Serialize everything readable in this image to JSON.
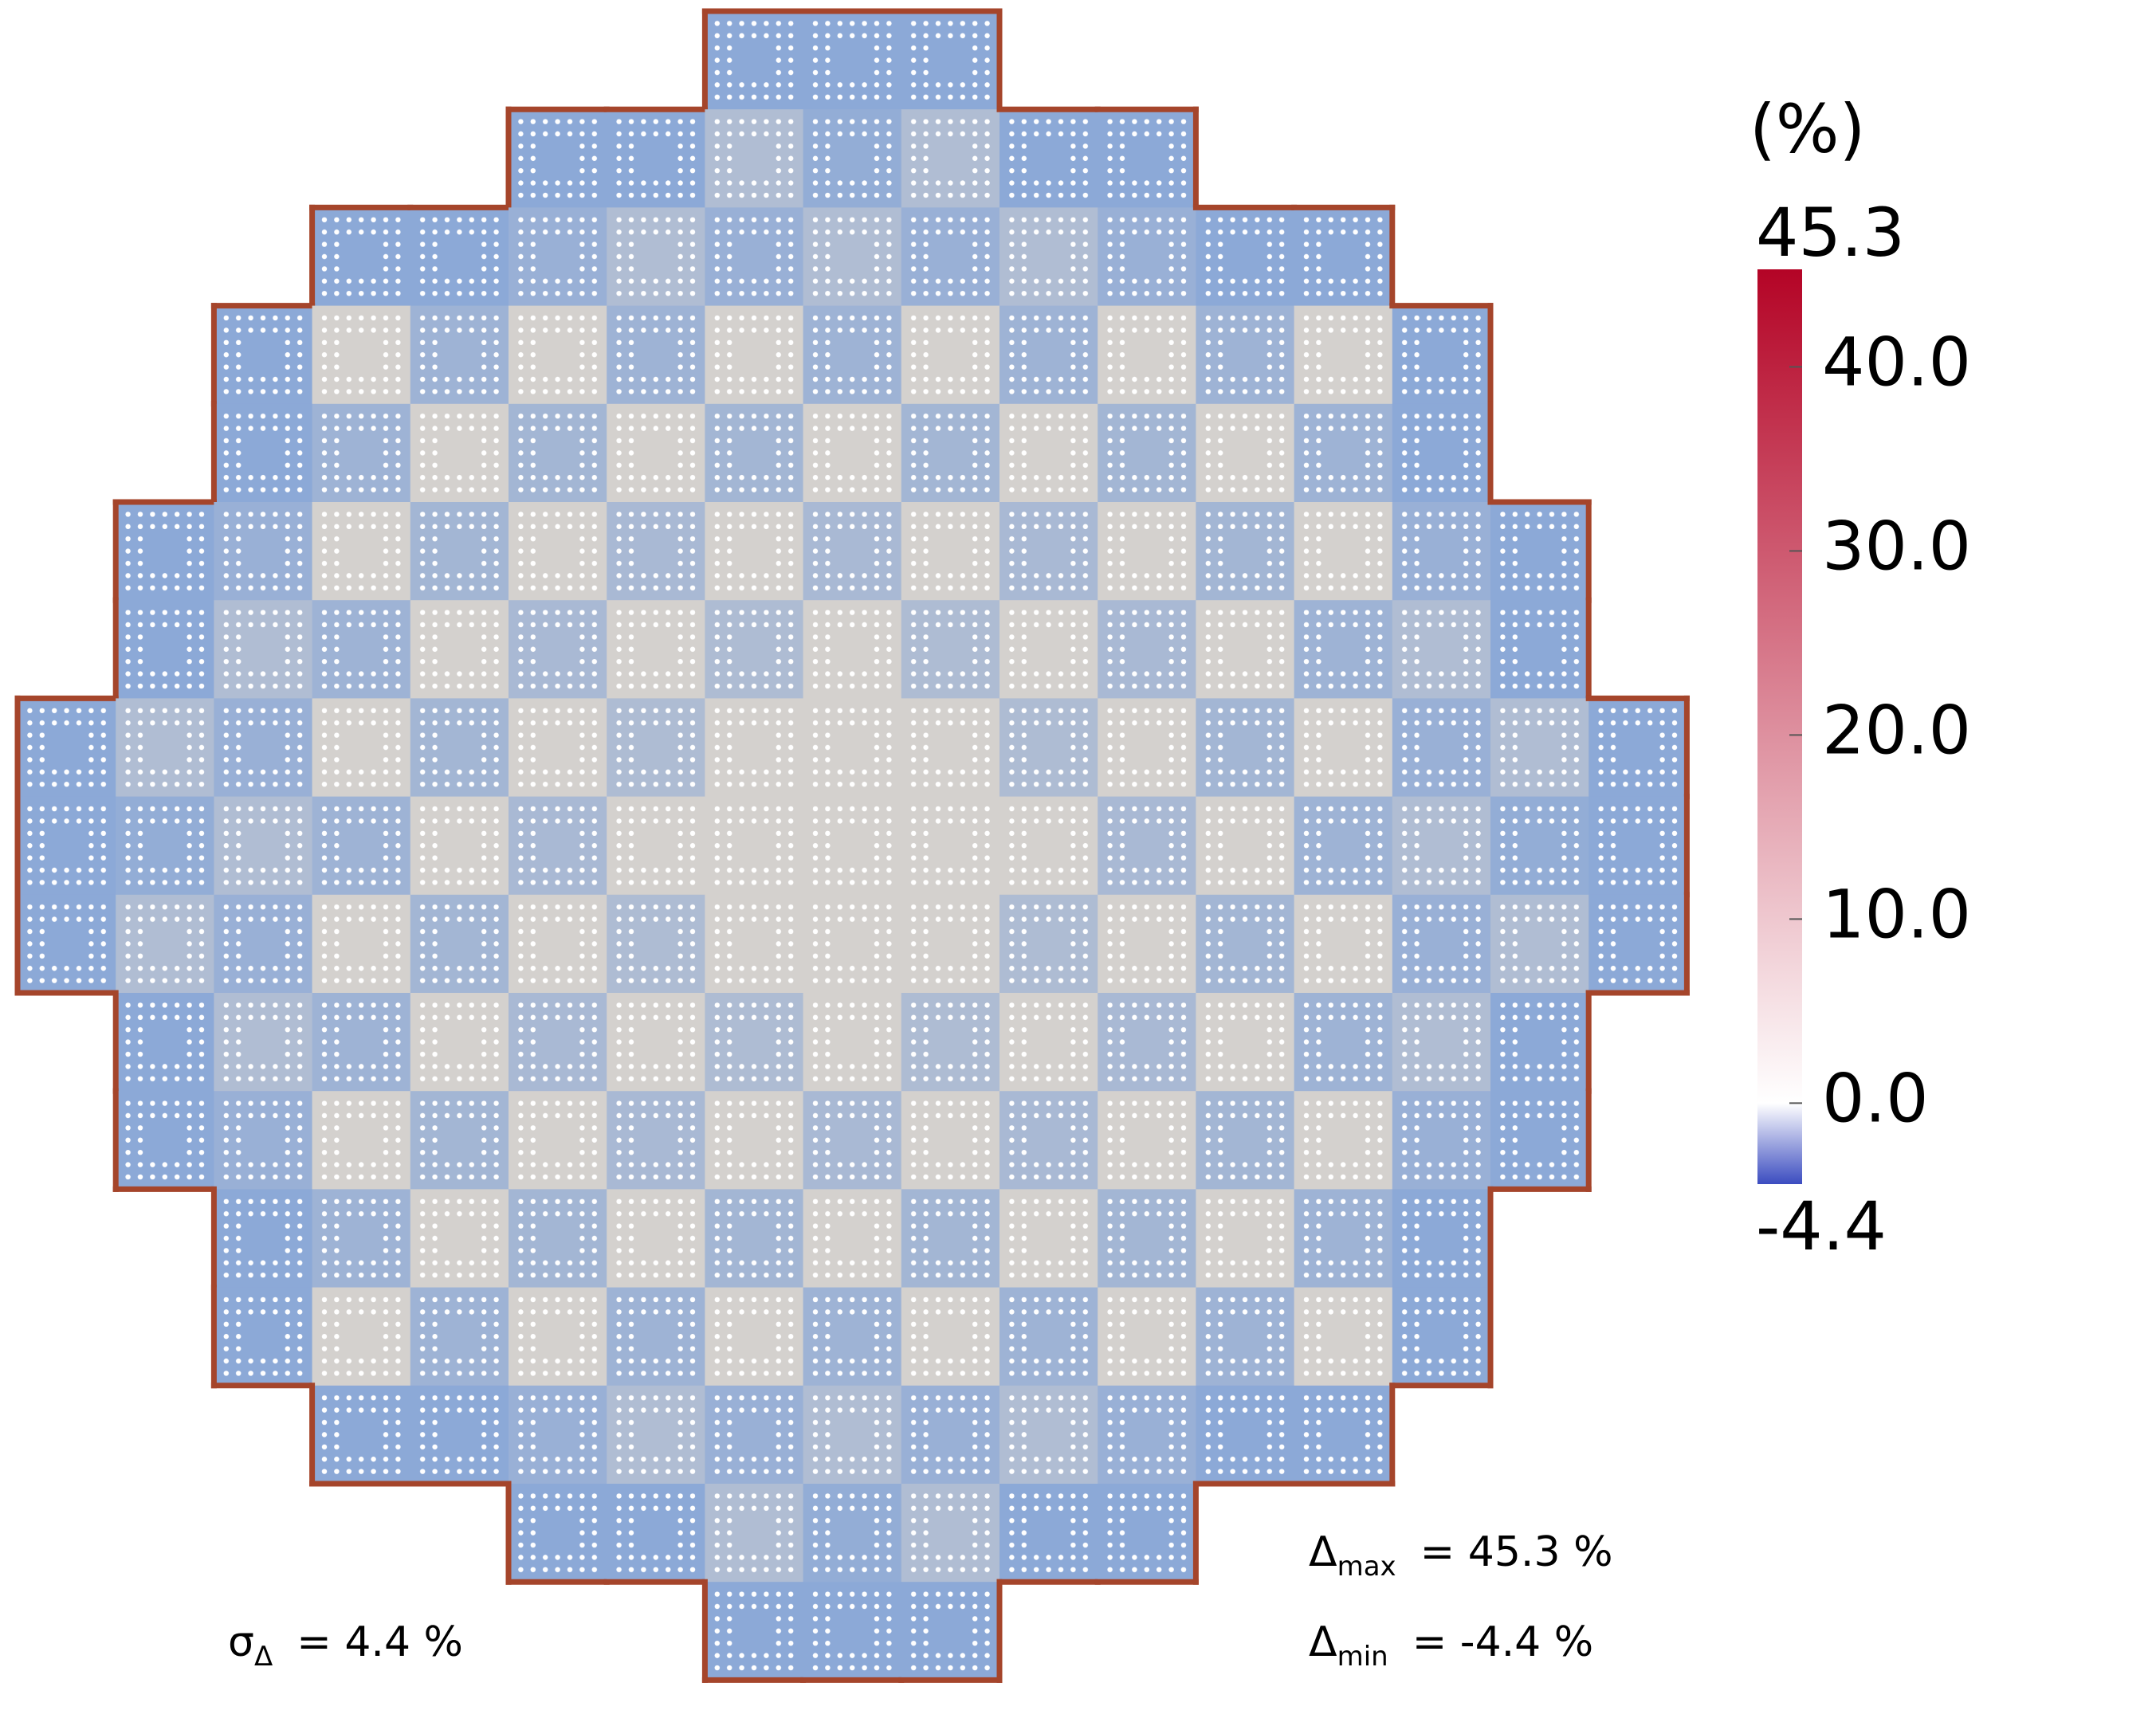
{
  "chart_data": {
    "type": "colormap",
    "colorbar_title": "(%)",
    "clim": [
      -4.4,
      45.3
    ],
    "colors": [
      "#3b4cc0",
      "#ffffff",
      "#b40426"
    ],
    "ticks": [
      {
        "value": 0,
        "label": "0.0"
      },
      {
        "value": 10,
        "label": "10.0"
      },
      {
        "value": 20,
        "label": "20.0"
      },
      {
        "value": 30,
        "label": "30.0"
      },
      {
        "value": 40,
        "label": "40.0"
      }
    ],
    "annotations": [
      {
        "symbol": "σ",
        "sub": "Δ",
        "rest": "=   4.4 %"
      },
      {
        "symbol": "Δ",
        "sub": "max",
        "rest": "=   45.3 %"
      },
      {
        "symbol": "Δ",
        "sub": "min",
        "rest": "=   -4.4 %"
      }
    ]
  }
}
